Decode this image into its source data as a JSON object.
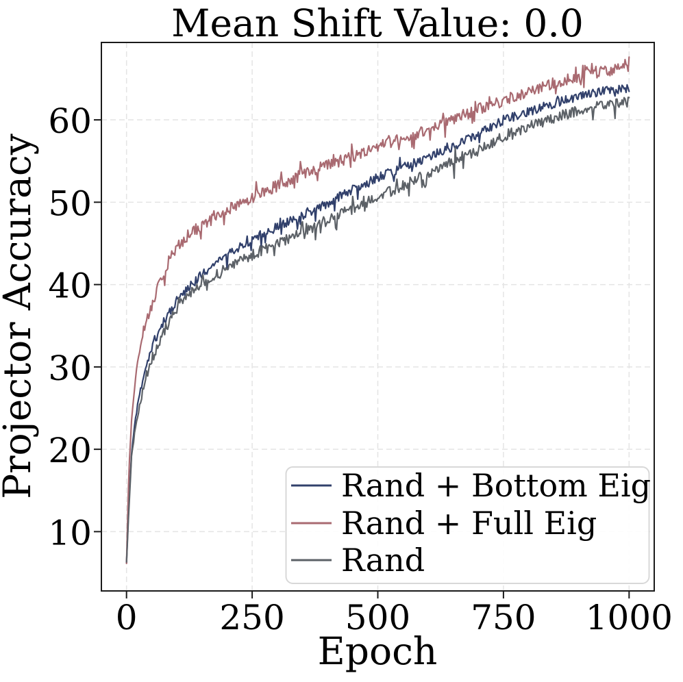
{
  "figure": {
    "background": "#ffffff"
  },
  "chart_data": {
    "type": "line",
    "title": "Mean Shift Value: 0.0",
    "xlabel": "Epoch",
    "ylabel": "Projector Accuracy",
    "xlim": [
      -50,
      1050
    ],
    "ylim": [
      2.8,
      69.4
    ],
    "xticks": [
      0,
      250,
      500,
      750,
      1000
    ],
    "yticks": [
      10,
      20,
      30,
      40,
      50,
      60
    ],
    "grid": true,
    "grid_style": "dashed",
    "legend_position": "lower right",
    "x_keypoints": [
      0,
      5,
      10,
      15,
      20,
      25,
      30,
      40,
      55,
      70,
      90,
      110,
      125,
      150,
      175,
      200,
      225,
      250,
      275,
      300,
      325,
      350,
      375,
      400,
      425,
      450,
      475,
      500,
      525,
      550,
      575,
      600,
      625,
      650,
      675,
      700,
      725,
      750,
      775,
      800,
      825,
      850,
      875,
      900,
      925,
      950,
      975,
      1000
    ],
    "series": [
      {
        "name": "Rand + Bottom Eig",
        "color": "#31406b",
        "noise_amplitude": 0.55,
        "values": [
          6.2,
          14,
          19.5,
          22.5,
          24.5,
          26.3,
          27.8,
          30.2,
          33,
          35,
          37.2,
          38.8,
          39.8,
          41.2,
          42.4,
          43.5,
          44.6,
          45.5,
          46.3,
          47,
          47.7,
          48.4,
          49.1,
          49.9,
          50.7,
          51.5,
          52.2,
          53,
          53.6,
          54.2,
          54.8,
          55.4,
          56.1,
          56.8,
          57.5,
          58.2,
          59.1,
          60,
          60.5,
          61,
          61.5,
          62,
          62.4,
          62.8,
          63.2,
          63.5,
          63.7,
          63.9
        ]
      },
      {
        "name": "Rand + Full Eig",
        "color": "#a96a71",
        "noise_amplitude": 0.7,
        "values": [
          6.2,
          18,
          23.5,
          27,
          29.5,
          31.5,
          32.8,
          35.5,
          38.5,
          41,
          43.5,
          45.2,
          46.2,
          47.2,
          48.1,
          49,
          49.8,
          50.6,
          51.3,
          52,
          52.7,
          53.3,
          53.9,
          54.5,
          55,
          55.6,
          56.1,
          56.7,
          57.2,
          57.8,
          58.3,
          58.9,
          59.5,
          60.1,
          60.7,
          61.3,
          61.8,
          62.3,
          62.9,
          63.5,
          64,
          64.5,
          64.9,
          65.3,
          65.6,
          65.9,
          66.1,
          66.3
        ]
      },
      {
        "name": "Rand",
        "color": "#5c6167",
        "noise_amplitude": 0.65,
        "values": [
          6.2,
          13,
          19,
          21.5,
          23.5,
          25,
          26.5,
          29,
          31.5,
          33.8,
          36,
          37.8,
          38.8,
          40.2,
          41.2,
          42,
          42.8,
          43.6,
          44.3,
          45,
          45.7,
          46.4,
          47.1,
          47.8,
          48.5,
          49.2,
          49.9,
          50.6,
          51.3,
          52,
          52.7,
          53.5,
          54.2,
          55,
          55.7,
          56.4,
          57.2,
          57.9,
          58.5,
          59.1,
          59.7,
          60.2,
          60.7,
          61.2,
          61.5,
          61.8,
          62,
          62.2
        ]
      }
    ],
    "colors": {
      "grid": "#e4e4e4",
      "spine": "#1a1a1a",
      "tick": "#1a1a1a",
      "text": "#000000",
      "legend_border": "#d8d8d8",
      "legend_background": "#ffffff"
    }
  }
}
